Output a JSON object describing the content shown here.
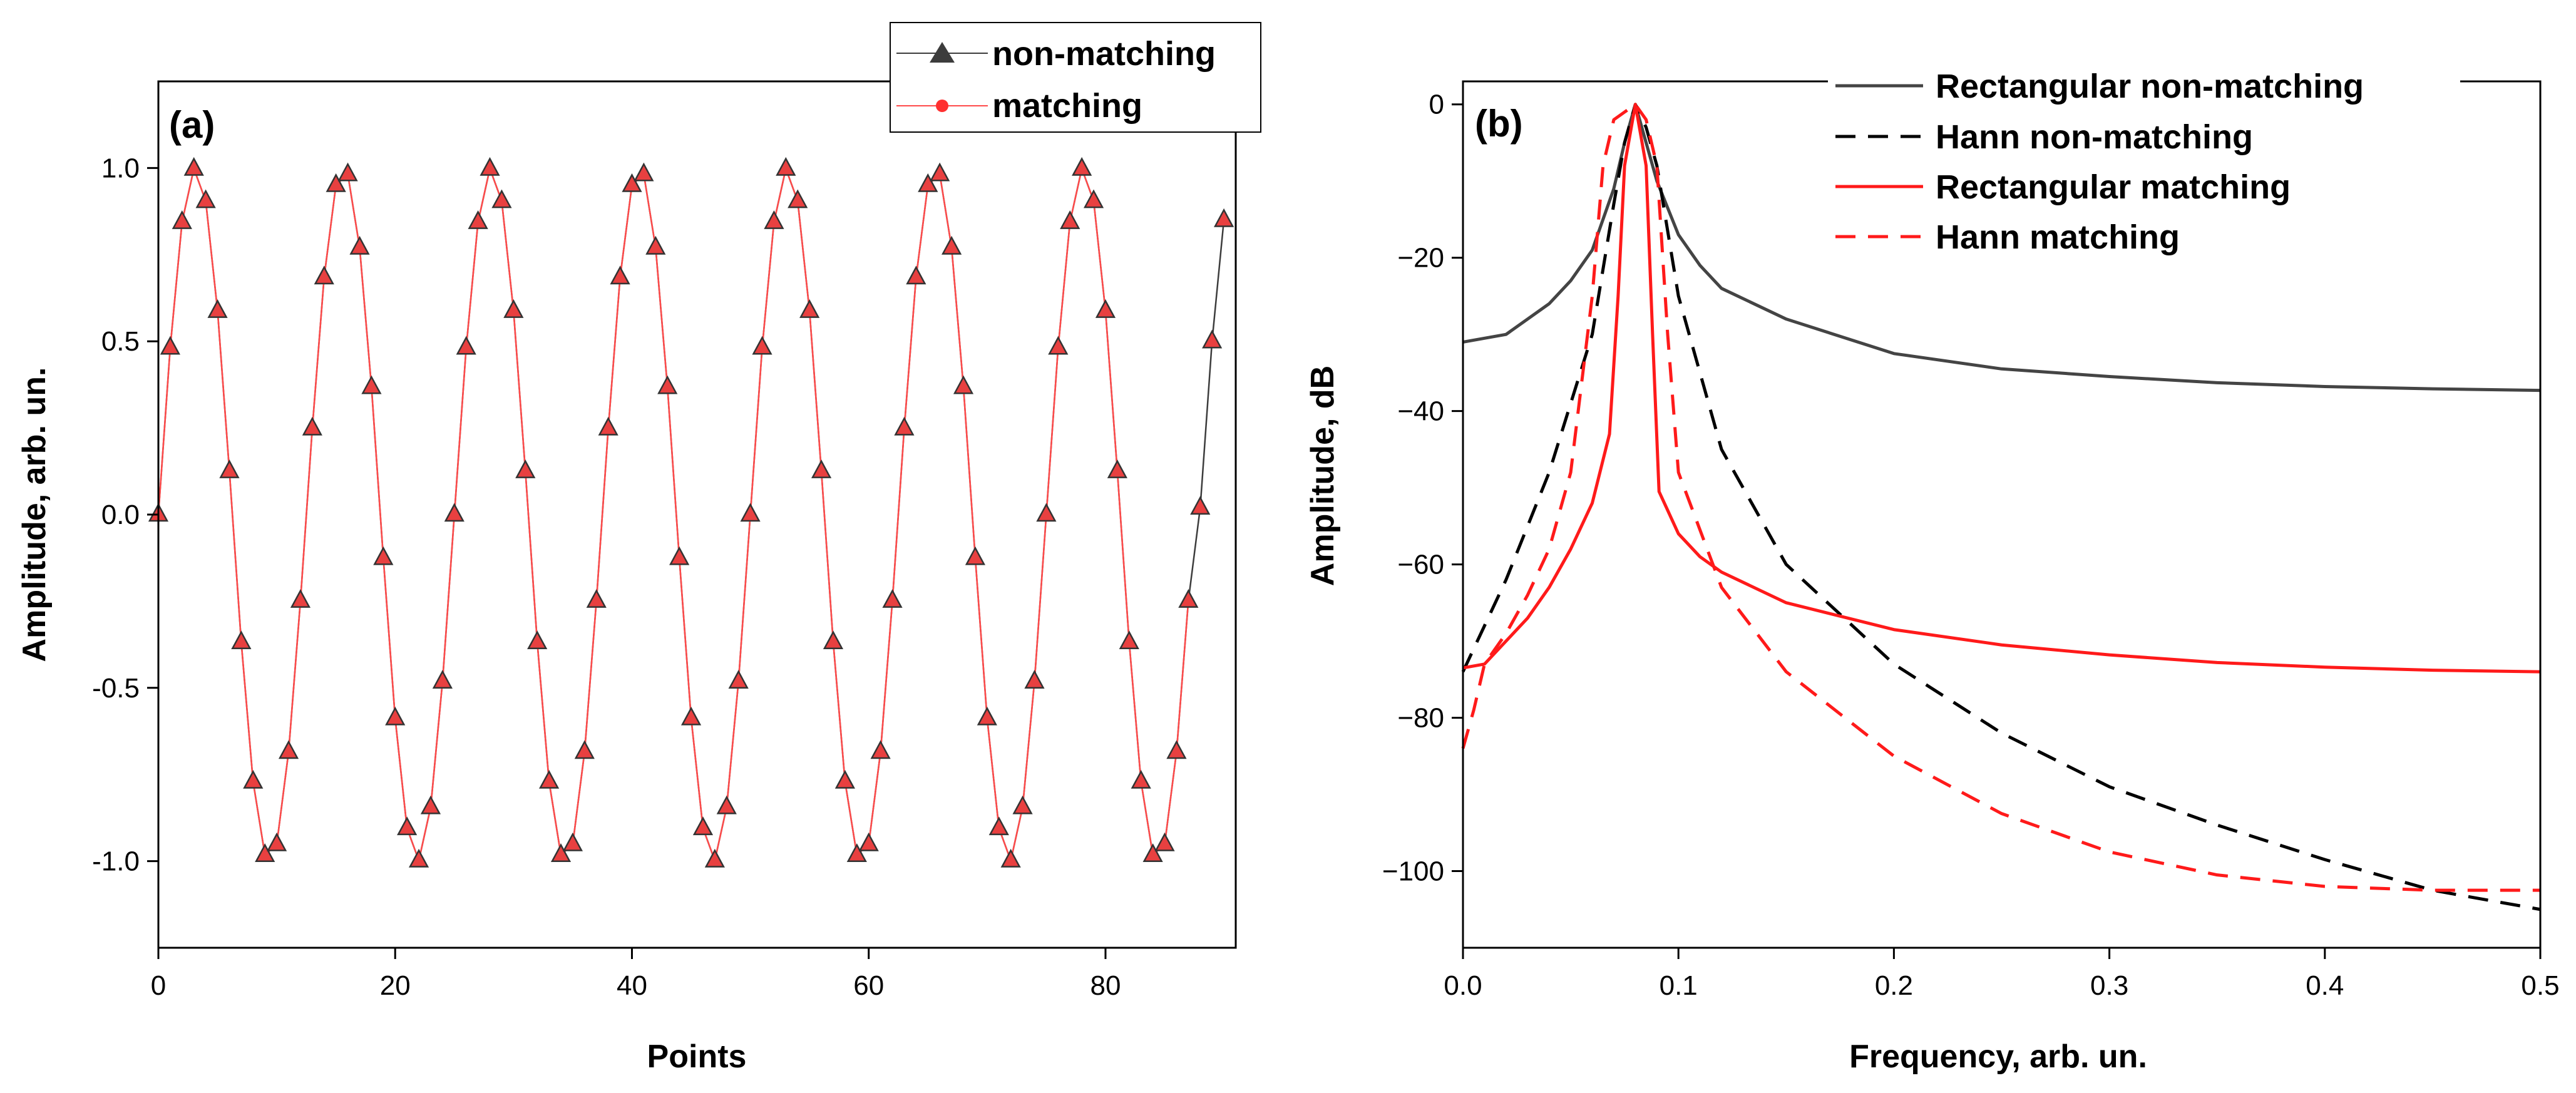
{
  "chart_data": [
    {
      "id": "a",
      "type": "line",
      "panel_label": "(a)",
      "xlabel": "Points",
      "ylabel": "Amplitude, arb. un.",
      "xlim": [
        0,
        91
      ],
      "ylim": [
        -1.25,
        1.25
      ],
      "xticks": [
        0,
        20,
        40,
        60,
        80
      ],
      "xtick_labels": [
        "0",
        "20",
        "40",
        "60",
        "80"
      ],
      "yticks": [
        -1.0,
        -0.5,
        0.0,
        0.5,
        1.0
      ],
      "ytick_labels": [
        "-1.0",
        "-0.5",
        "0.0",
        "0.5",
        "1.0"
      ],
      "legend": {
        "position": "top-right",
        "entries": [
          "non-matching",
          "matching"
        ]
      },
      "series": [
        {
          "name": "non-matching",
          "color": "#3c3c3c",
          "marker": "triangle",
          "marker_fill": "#e84040",
          "signal": {
            "type": "sine",
            "period": 12.5,
            "amplitude": 1.0,
            "n_points": 91
          },
          "tail_points": {
            "x": [
              88,
              89,
              90
            ],
            "y": [
              0.02,
              0.5,
              0.85
            ]
          }
        },
        {
          "name": "matching",
          "color": "#ff4a4a",
          "marker": "circle",
          "signal": {
            "type": "sine",
            "period": 12.5,
            "amplitude": 1.0,
            "n_points": 88
          }
        }
      ]
    },
    {
      "id": "b",
      "type": "line",
      "panel_label": "(b)",
      "xlabel": "Frequency, arb. un.",
      "ylabel": "Amplitude, dB",
      "xlim": [
        0,
        0.5
      ],
      "ylim": [
        -110,
        3
      ],
      "xticks": [
        0,
        0.1,
        0.2,
        0.3,
        0.4,
        0.5
      ],
      "xtick_labels": [
        "0.0",
        "0.1",
        "0.2",
        "0.3",
        "0.4",
        "0.5"
      ],
      "yticks": [
        0,
        -20,
        -40,
        -60,
        -80,
        -100
      ],
      "ytick_labels": [
        "0",
        "−20",
        "−40",
        "−60",
        "−80",
        "−100"
      ],
      "legend": {
        "position": "top-right",
        "entries": [
          "Rectangular non-matching",
          "Hann non-matching",
          "Rectangular matching",
          "Hann matching"
        ]
      },
      "series": [
        {
          "name": "Rectangular non-matching",
          "color": "#444444",
          "dash": "solid",
          "x": [
            0,
            0.02,
            0.04,
            0.05,
            0.06,
            0.07,
            0.075,
            0.08,
            0.085,
            0.09,
            0.1,
            0.11,
            0.12,
            0.15,
            0.2,
            0.25,
            0.3,
            0.35,
            0.4,
            0.45,
            0.5
          ],
          "y": [
            -31,
            -30,
            -26,
            -23,
            -19,
            -11,
            -5,
            0,
            -5,
            -10,
            -17,
            -21,
            -24,
            -28,
            -32.5,
            -34.5,
            -35.5,
            -36.3,
            -36.8,
            -37.1,
            -37.3
          ]
        },
        {
          "name": "Hann non-matching",
          "color": "#000000",
          "dash": "dashed",
          "x": [
            0,
            0.02,
            0.04,
            0.06,
            0.07,
            0.075,
            0.08,
            0.085,
            0.09,
            0.1,
            0.12,
            0.15,
            0.2,
            0.25,
            0.3,
            0.35,
            0.4,
            0.45,
            0.5
          ],
          "y": [
            -74,
            -62,
            -48,
            -30,
            -13,
            -5,
            0,
            -3,
            -8,
            -25,
            -45,
            -60,
            -73,
            -82,
            -89,
            -94,
            -98.5,
            -102.5,
            -105
          ]
        },
        {
          "name": "Rectangular matching",
          "color": "#ff1a1a",
          "dash": "solid",
          "x": [
            0,
            0.01,
            0.02,
            0.03,
            0.04,
            0.05,
            0.06,
            0.068,
            0.072,
            0.075,
            0.08,
            0.085,
            0.088,
            0.091,
            0.1,
            0.11,
            0.12,
            0.15,
            0.2,
            0.25,
            0.3,
            0.35,
            0.4,
            0.45,
            0.5
          ],
          "y": [
            -73.5,
            -73,
            -70,
            -67,
            -63,
            -58,
            -52,
            -43,
            -25,
            -8,
            0,
            -8,
            -30,
            -50.5,
            -56,
            -59,
            -61,
            -65,
            -68.5,
            -70.5,
            -71.8,
            -72.8,
            -73.4,
            -73.8,
            -74
          ]
        },
        {
          "name": "Hann matching",
          "color": "#ff1a1a",
          "dash": "dashed",
          "x": [
            0,
            0.005,
            0.01,
            0.02,
            0.03,
            0.04,
            0.05,
            0.06,
            0.065,
            0.07,
            0.075,
            0.08,
            0.085,
            0.09,
            0.095,
            0.1,
            0.12,
            0.15,
            0.2,
            0.25,
            0.3,
            0.35,
            0.4,
            0.45,
            0.5
          ],
          "y": [
            -84,
            -79,
            -73,
            -69,
            -64,
            -58,
            -48,
            -25,
            -8,
            -2,
            -1,
            0,
            -2,
            -8,
            -30,
            -48,
            -63,
            -74,
            -85,
            -92.5,
            -97.5,
            -100.5,
            -102,
            -102.5,
            -102.5
          ]
        }
      ]
    }
  ]
}
